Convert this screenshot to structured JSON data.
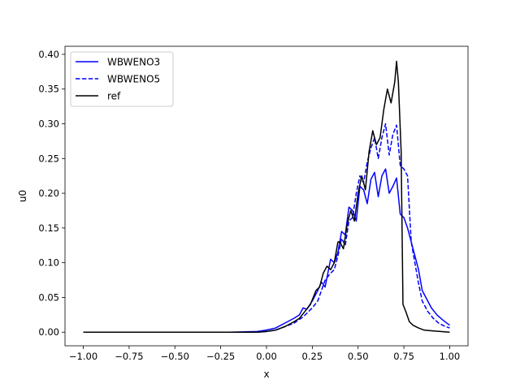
{
  "chart_data": {
    "type": "line",
    "title": "",
    "xlabel": "x",
    "ylabel": "u0",
    "xlim": [
      -1.1,
      1.1
    ],
    "ylim": [
      -0.0196,
      0.4116
    ],
    "xticks": [
      -1.0,
      -0.75,
      -0.5,
      -0.25,
      0.0,
      0.25,
      0.5,
      0.75,
      1.0
    ],
    "xtick_labels": [
      "−1.00",
      "−0.75",
      "−0.50",
      "−0.25",
      "0.00",
      "0.25",
      "0.50",
      "0.75",
      "1.00"
    ],
    "yticks": [
      0.0,
      0.05,
      0.1,
      0.15,
      0.2,
      0.25,
      0.3,
      0.35,
      0.4
    ],
    "ytick_labels": [
      "0.00",
      "0.05",
      "0.10",
      "0.15",
      "0.20",
      "0.25",
      "0.30",
      "0.35",
      "0.40"
    ],
    "grid": false,
    "legend_position": "top-left",
    "series": [
      {
        "name": "WBWENO3",
        "color": "#0000ff",
        "dash": "solid",
        "points": [
          [
            -1.0,
            0.0
          ],
          [
            -0.5,
            0.0
          ],
          [
            -0.2,
            0.0
          ],
          [
            -0.05,
            0.001
          ],
          [
            0.0,
            0.003
          ],
          [
            0.05,
            0.006
          ],
          [
            0.1,
            0.013
          ],
          [
            0.15,
            0.02
          ],
          [
            0.18,
            0.025
          ],
          [
            0.2,
            0.035
          ],
          [
            0.22,
            0.033
          ],
          [
            0.25,
            0.045
          ],
          [
            0.28,
            0.06
          ],
          [
            0.3,
            0.072
          ],
          [
            0.32,
            0.065
          ],
          [
            0.35,
            0.105
          ],
          [
            0.37,
            0.1
          ],
          [
            0.39,
            0.115
          ],
          [
            0.41,
            0.145
          ],
          [
            0.43,
            0.14
          ],
          [
            0.45,
            0.18
          ],
          [
            0.47,
            0.175
          ],
          [
            0.49,
            0.16
          ],
          [
            0.51,
            0.21
          ],
          [
            0.53,
            0.205
          ],
          [
            0.55,
            0.185
          ],
          [
            0.57,
            0.22
          ],
          [
            0.59,
            0.23
          ],
          [
            0.61,
            0.195
          ],
          [
            0.63,
            0.225
          ],
          [
            0.65,
            0.235
          ],
          [
            0.67,
            0.2
          ],
          [
            0.69,
            0.21
          ],
          [
            0.71,
            0.222
          ],
          [
            0.73,
            0.17
          ],
          [
            0.75,
            0.165
          ],
          [
            0.77,
            0.15
          ],
          [
            0.79,
            0.13
          ],
          [
            0.81,
            0.11
          ],
          [
            0.83,
            0.09
          ],
          [
            0.85,
            0.06
          ],
          [
            0.88,
            0.045
          ],
          [
            0.9,
            0.035
          ],
          [
            0.93,
            0.025
          ],
          [
            0.96,
            0.018
          ],
          [
            1.0,
            0.01
          ]
        ]
      },
      {
        "name": "WBWENO5",
        "color": "#0000ff",
        "dash": "dashed",
        "points": [
          [
            -1.0,
            0.0
          ],
          [
            -0.5,
            0.0
          ],
          [
            -0.2,
            0.0
          ],
          [
            -0.05,
            0.0
          ],
          [
            0.0,
            0.001
          ],
          [
            0.05,
            0.003
          ],
          [
            0.1,
            0.008
          ],
          [
            0.15,
            0.013
          ],
          [
            0.2,
            0.022
          ],
          [
            0.25,
            0.035
          ],
          [
            0.28,
            0.045
          ],
          [
            0.3,
            0.06
          ],
          [
            0.32,
            0.075
          ],
          [
            0.35,
            0.085
          ],
          [
            0.37,
            0.09
          ],
          [
            0.39,
            0.11
          ],
          [
            0.41,
            0.135
          ],
          [
            0.43,
            0.125
          ],
          [
            0.45,
            0.16
          ],
          [
            0.47,
            0.165
          ],
          [
            0.49,
            0.2
          ],
          [
            0.51,
            0.225
          ],
          [
            0.53,
            0.215
          ],
          [
            0.55,
            0.245
          ],
          [
            0.57,
            0.265
          ],
          [
            0.59,
            0.28
          ],
          [
            0.61,
            0.25
          ],
          [
            0.63,
            0.28
          ],
          [
            0.65,
            0.3
          ],
          [
            0.67,
            0.255
          ],
          [
            0.69,
            0.285
          ],
          [
            0.71,
            0.298
          ],
          [
            0.73,
            0.24
          ],
          [
            0.75,
            0.235
          ],
          [
            0.77,
            0.225
          ],
          [
            0.79,
            0.13
          ],
          [
            0.81,
            0.1
          ],
          [
            0.83,
            0.07
          ],
          [
            0.85,
            0.045
          ],
          [
            0.88,
            0.03
          ],
          [
            0.91,
            0.02
          ],
          [
            0.94,
            0.013
          ],
          [
            0.97,
            0.009
          ],
          [
            1.0,
            0.006
          ]
        ]
      },
      {
        "name": "ref",
        "color": "#000000",
        "dash": "solid",
        "points": [
          [
            -1.0,
            0.0
          ],
          [
            -0.5,
            0.0
          ],
          [
            -0.2,
            0.0
          ],
          [
            -0.05,
            0.0
          ],
          [
            0.0,
            0.001
          ],
          [
            0.05,
            0.003
          ],
          [
            0.1,
            0.008
          ],
          [
            0.15,
            0.015
          ],
          [
            0.18,
            0.02
          ],
          [
            0.21,
            0.03
          ],
          [
            0.24,
            0.04
          ],
          [
            0.27,
            0.06
          ],
          [
            0.29,
            0.065
          ],
          [
            0.31,
            0.085
          ],
          [
            0.33,
            0.095
          ],
          [
            0.35,
            0.09
          ],
          [
            0.37,
            0.1
          ],
          [
            0.39,
            0.13
          ],
          [
            0.4,
            0.13
          ],
          [
            0.42,
            0.12
          ],
          [
            0.44,
            0.155
          ],
          [
            0.46,
            0.175
          ],
          [
            0.48,
            0.16
          ],
          [
            0.5,
            0.2
          ],
          [
            0.52,
            0.225
          ],
          [
            0.54,
            0.205
          ],
          [
            0.56,
            0.26
          ],
          [
            0.58,
            0.29
          ],
          [
            0.6,
            0.27
          ],
          [
            0.62,
            0.28
          ],
          [
            0.64,
            0.32
          ],
          [
            0.66,
            0.35
          ],
          [
            0.68,
            0.33
          ],
          [
            0.7,
            0.36
          ],
          [
            0.71,
            0.39
          ],
          [
            0.72,
            0.36
          ],
          [
            0.735,
            0.26
          ],
          [
            0.745,
            0.04
          ],
          [
            0.76,
            0.03
          ],
          [
            0.78,
            0.015
          ],
          [
            0.8,
            0.01
          ],
          [
            0.83,
            0.006
          ],
          [
            0.86,
            0.003
          ],
          [
            0.9,
            0.002
          ],
          [
            0.95,
            0.001
          ],
          [
            1.0,
            0.0
          ]
        ]
      }
    ]
  }
}
